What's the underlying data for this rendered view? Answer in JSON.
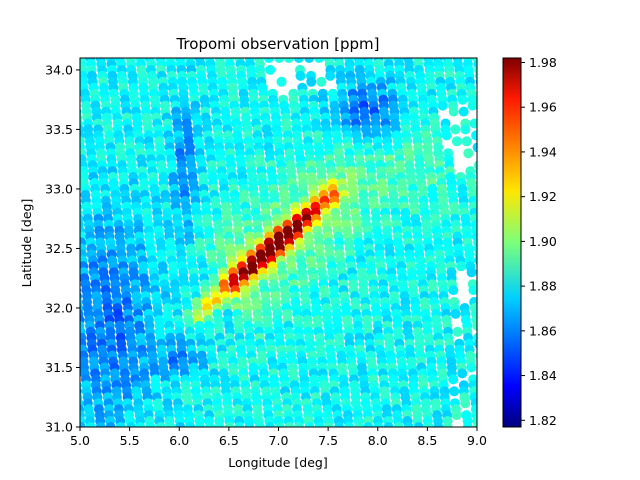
{
  "chart_data": {
    "type": "scatter",
    "title": "Tropomi observation [ppm]",
    "xlabel": "Longitude [deg]",
    "ylabel": "Latitude [deg]",
    "xlim": [
      5.0,
      9.0
    ],
    "ylim": [
      31.0,
      34.1
    ],
    "x_ticks": [
      "5.0",
      "5.5",
      "6.0",
      "6.5",
      "7.0",
      "7.5",
      "8.0",
      "8.5",
      "9.0"
    ],
    "y_ticks": [
      "31.0",
      "31.5",
      "32.0",
      "32.5",
      "33.0",
      "33.5",
      "34.0"
    ],
    "colormap": "jet",
    "colorbar": {
      "range": [
        1.817,
        1.982
      ],
      "ticks": [
        "1.82",
        "1.84",
        "1.86",
        "1.88",
        "1.90",
        "1.92",
        "1.94",
        "1.96",
        "1.98"
      ]
    },
    "description_of_field": {
      "background_value": 1.88,
      "plume_start": [
        6.2,
        31.95
      ],
      "plume_peak": [
        7.0,
        32.45
      ],
      "plume_peak_value": 1.975,
      "low_region_value": 1.84
    },
    "grid": false,
    "legend": "none"
  }
}
